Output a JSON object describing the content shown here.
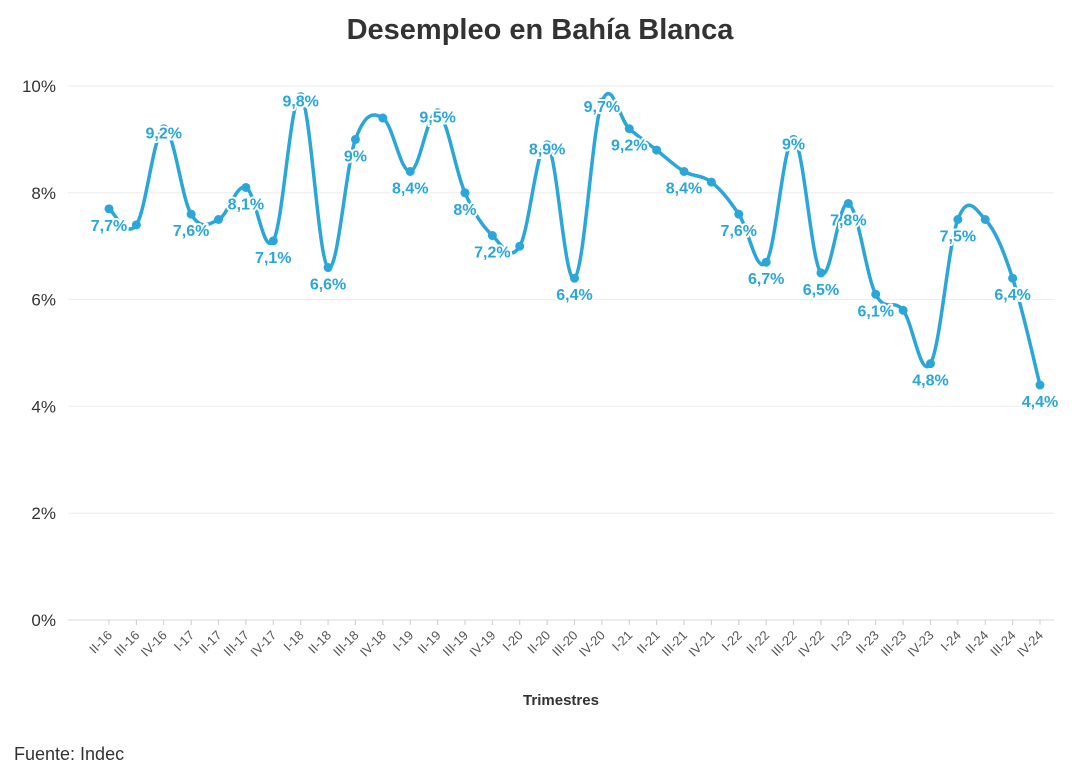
{
  "chart_data": {
    "type": "line",
    "title": "Desempleo en Bahía Blanca",
    "xlabel": "Trimestres",
    "ylabel": "",
    "ylim": [
      0,
      10
    ],
    "yticks": [
      "0%",
      "2%",
      "4%",
      "6%",
      "8%",
      "10%"
    ],
    "categories": [
      "II-16",
      "III-16",
      "IV-16",
      "I-17",
      "II-17",
      "III-17",
      "IV-17",
      "I-18",
      "II-18",
      "III-18",
      "IV-18",
      "I-19",
      "II-19",
      "III-19",
      "IV-19",
      "I-20",
      "II-20",
      "III-20",
      "IV-20",
      "I-21",
      "II-21",
      "III-21",
      "IV-21",
      "I-22",
      "II-22",
      "III-22",
      "IV-22",
      "I-23",
      "II-23",
      "III-23",
      "IV-23",
      "I-24",
      "II-24",
      "III-24",
      "IV-24"
    ],
    "series": [
      {
        "values": [
          7.7,
          7.4,
          9.2,
          7.6,
          7.5,
          8.1,
          7.1,
          9.8,
          6.6,
          9,
          9.4,
          8.4,
          9.5,
          8,
          7.2,
          7,
          8.9,
          6.4,
          9.7,
          9.2,
          8.8,
          8.4,
          8.2,
          7.6,
          6.7,
          9,
          6.5,
          7.8,
          6.1,
          5.8,
          4.8,
          7.5,
          7.5,
          6.4,
          4.4
        ],
        "labels": [
          "7,7%",
          "",
          "9,2%",
          "7,6%",
          "",
          "8,1%",
          "7,1%",
          "9,8%",
          "6,6%",
          "9%",
          "",
          "8,4%",
          "9,5%",
          "8%",
          "7,2%",
          "",
          "8,9%",
          "6,4%",
          "9,7%",
          "9,2%",
          "",
          "8,4%",
          "",
          "7,6%",
          "6,7%",
          "9%",
          "6,5%",
          "7,8%",
          "6,1%",
          "",
          "4,8%",
          "7,5%",
          "",
          "6,4%",
          "4,4%"
        ],
        "color": "#2aa6d8"
      }
    ],
    "grid": true,
    "legend": "none"
  },
  "footer": {
    "source": "Fuente: Indec"
  }
}
